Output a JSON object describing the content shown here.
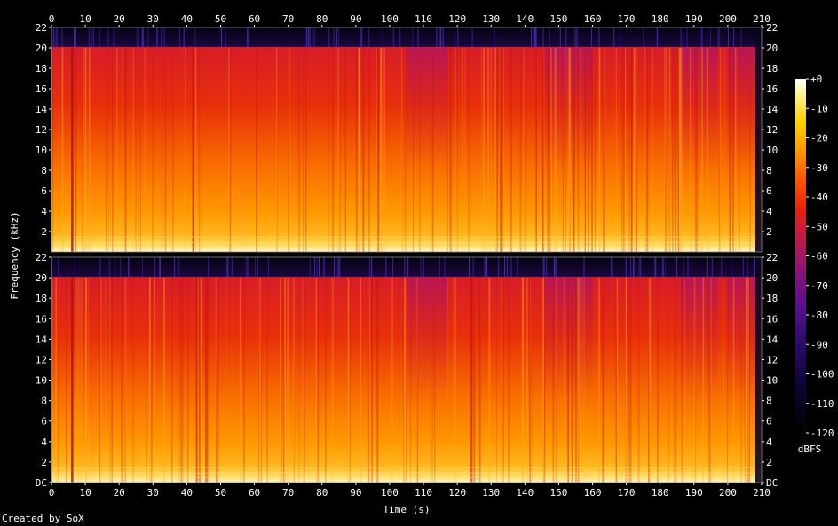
{
  "chart_data": {
    "type": "heatmap",
    "xlabel": "Time (s)",
    "ylabel": "Frequency (kHz)",
    "colorbar_label": "dBFS",
    "x_ticks": [
      0,
      10,
      20,
      30,
      40,
      50,
      60,
      70,
      80,
      90,
      100,
      110,
      120,
      130,
      140,
      150,
      160,
      170,
      180,
      190,
      200,
      210
    ],
    "x_range": [
      0,
      210
    ],
    "y_tick_labels": [
      "DC",
      "2",
      "4",
      "6",
      "8",
      "10",
      "12",
      "14",
      "16",
      "18",
      "20",
      "22"
    ],
    "y_range_khz": [
      0,
      22
    ],
    "colorbar_ticks": [
      "+0",
      "-10",
      "-20",
      "-30",
      "-40",
      "-50",
      "-60",
      "-70",
      "-80",
      "-90",
      "-100",
      "-110",
      "-120"
    ],
    "colorbar_range_db": [
      -120,
      0
    ],
    "channels": [
      {
        "top_tick_label": "22",
        "bottom_tick_label": "2",
        "cutoff_khz": 20,
        "level_db_by_khz": [
          {
            "khz": 0,
            "db": -10
          },
          {
            "khz": 2,
            "db": -25
          },
          {
            "khz": 6,
            "db": -32
          },
          {
            "khz": 12,
            "db": -40
          },
          {
            "khz": 19,
            "db": -47
          },
          {
            "khz": 20,
            "db": -52
          },
          {
            "khz": 20.3,
            "db": -105
          },
          {
            "khz": 22,
            "db": -120
          }
        ]
      },
      {
        "top_tick_label": "22",
        "bottom_tick_label": "DC",
        "cutoff_khz": 20,
        "level_db_by_khz": [
          {
            "khz": 0,
            "db": -10
          },
          {
            "khz": 2,
            "db": -25
          },
          {
            "khz": 6,
            "db": -32
          },
          {
            "khz": 12,
            "db": -40
          },
          {
            "khz": 19,
            "db": -47
          },
          {
            "khz": 20,
            "db": -52
          },
          {
            "khz": 20.3,
            "db": -105
          },
          {
            "khz": 22,
            "db": -120
          }
        ]
      }
    ],
    "quiet_sections_s": [
      [
        105,
        117
      ],
      [
        146,
        160
      ],
      [
        186,
        197
      ],
      [
        200,
        210
      ]
    ],
    "signal_end_s": 208
  },
  "footer": {
    "credit": "Created by SoX"
  }
}
